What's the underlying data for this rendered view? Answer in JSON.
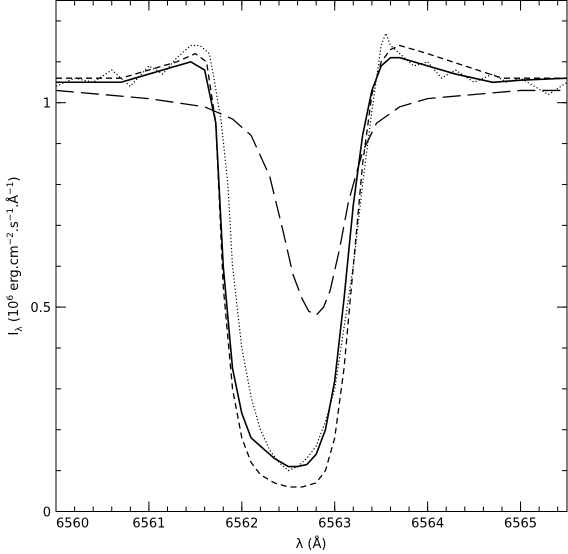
{
  "chart_data": {
    "type": "line",
    "title": "",
    "xlabel": "λ (Å)",
    "ylabel_main": "I",
    "ylabel_sub": "λ",
    "ylabel_rest": " (10",
    "ylabel_exp6": "6",
    "ylabel_units": " erg.cm",
    "ylabel_exp2": "−2",
    "ylabel_mid": ".s",
    "ylabel_exp1": "−1",
    "ylabel_ang": ".Å",
    "ylabel_exp3": "−1",
    "ylabel_close": ")",
    "xlim": [
      6560,
      6565.5
    ],
    "ylim": [
      0,
      1.25
    ],
    "x_ticks": [
      6560,
      6561,
      6562,
      6563,
      6564,
      6565
    ],
    "x_tick_labels": [
      "6560",
      "6561",
      "6562",
      "6563",
      "6564",
      "6565"
    ],
    "x_minor_step": 0.2,
    "y_ticks": [
      0,
      0.5,
      1
    ],
    "y_tick_labels": [
      "0",
      "0.5",
      "1"
    ],
    "y_minor_step": 0.1,
    "grid": false,
    "legend": "none",
    "series": [
      {
        "style": "solid",
        "x": [
          6560,
          6560.7,
          6561,
          6561.3,
          6561.45,
          6561.6,
          6561.72,
          6561.8,
          6561.9,
          6562.0,
          6562.1,
          6562.2,
          6562.35,
          6562.5,
          6562.6,
          6562.7,
          6562.8,
          6562.9,
          6563.0,
          6563.1,
          6563.2,
          6563.3,
          6563.4,
          6563.5,
          6563.6,
          6563.7,
          6564.0,
          6564.3,
          6564.7,
          6565,
          6565.5
        ],
        "y": [
          1.05,
          1.05,
          1.07,
          1.09,
          1.1,
          1.08,
          0.95,
          0.6,
          0.35,
          0.24,
          0.18,
          0.16,
          0.13,
          0.11,
          0.11,
          0.115,
          0.14,
          0.2,
          0.32,
          0.52,
          0.75,
          0.92,
          1.03,
          1.09,
          1.11,
          1.11,
          1.09,
          1.07,
          1.05,
          1.055,
          1.06
        ]
      },
      {
        "style": "dashed",
        "x": [
          6560,
          6560.7,
          6561,
          6561.3,
          6561.5,
          6561.62,
          6561.72,
          6561.8,
          6561.9,
          6562.0,
          6562.1,
          6562.2,
          6562.35,
          6562.5,
          6562.65,
          6562.8,
          6562.9,
          6563.0,
          6563.1,
          6563.2,
          6563.3,
          6563.4,
          6563.5,
          6563.6,
          6563.7,
          6564.0,
          6564.4,
          6564.8,
          6565,
          6565.5
        ],
        "y": [
          1.06,
          1.06,
          1.08,
          1.1,
          1.12,
          1.1,
          0.95,
          0.55,
          0.3,
          0.18,
          0.12,
          0.09,
          0.07,
          0.06,
          0.06,
          0.07,
          0.1,
          0.18,
          0.35,
          0.6,
          0.85,
          1.02,
          1.1,
          1.13,
          1.14,
          1.12,
          1.09,
          1.06,
          1.06,
          1.06
        ]
      },
      {
        "style": "dotted",
        "x": [
          6560,
          6560.2,
          6560.4,
          6560.6,
          6560.8,
          6561.0,
          6561.15,
          6561.3,
          6561.45,
          6561.55,
          6561.65,
          6561.7,
          6561.78,
          6561.85,
          6561.9,
          6562.0,
          6562.1,
          6562.2,
          6562.3,
          6562.4,
          6562.5,
          6562.6,
          6562.7,
          6562.8,
          6562.9,
          6563.0,
          6563.1,
          6563.2,
          6563.3,
          6563.4,
          6563.5,
          6563.55,
          6563.6,
          6563.7,
          6563.85,
          6564.0,
          6564.15,
          6564.3,
          6564.5,
          6564.7,
          6564.85,
          6565.0,
          6565.15,
          6565.3,
          6565.5
        ],
        "y": [
          1.04,
          1.06,
          1.05,
          1.08,
          1.04,
          1.09,
          1.07,
          1.11,
          1.14,
          1.14,
          1.12,
          1.06,
          0.95,
          0.8,
          0.6,
          0.4,
          0.28,
          0.2,
          0.15,
          0.12,
          0.1,
          0.11,
          0.13,
          0.16,
          0.22,
          0.3,
          0.45,
          0.6,
          0.8,
          0.98,
          1.14,
          1.17,
          1.14,
          1.12,
          1.09,
          1.1,
          1.06,
          1.08,
          1.05,
          1.07,
          1.05,
          1.06,
          1.04,
          1.02,
          1.05
        ]
      },
      {
        "style": "long-dashed",
        "x": [
          6560,
          6560.5,
          6561,
          6561.3,
          6561.6,
          6561.9,
          6562.1,
          6562.3,
          6562.45,
          6562.55,
          6562.65,
          6562.72,
          6562.8,
          6562.88,
          6562.95,
          6563.05,
          6563.15,
          6563.3,
          6563.45,
          6563.7,
          6564.0,
          6564.5,
          6565,
          6565.5
        ],
        "y": [
          1.03,
          1.02,
          1.01,
          1.0,
          0.99,
          0.96,
          0.92,
          0.82,
          0.68,
          0.58,
          0.52,
          0.49,
          0.48,
          0.5,
          0.54,
          0.64,
          0.76,
          0.88,
          0.95,
          0.99,
          1.01,
          1.02,
          1.03,
          1.03
        ]
      }
    ]
  }
}
